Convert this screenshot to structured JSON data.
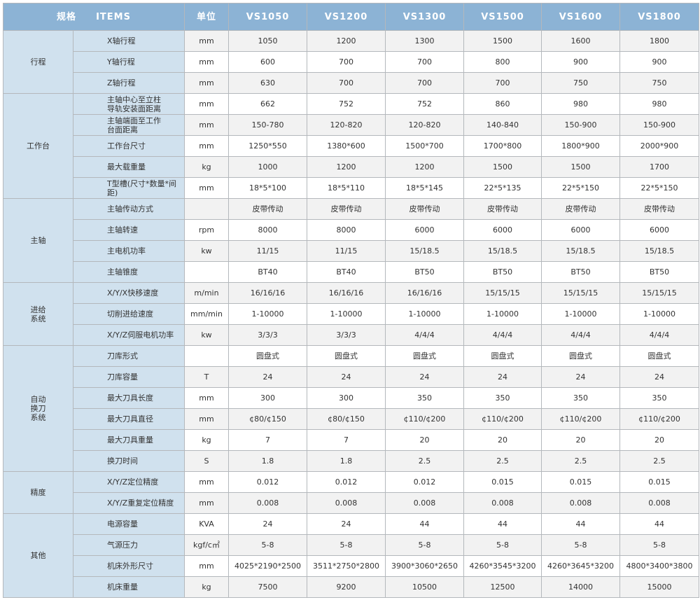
{
  "header": {
    "items_cn": "规格",
    "items_en": "ITEMS",
    "unit": "单位",
    "models": [
      "VS1050",
      "VS1200",
      "VS1300",
      "VS1500",
      "VS1600",
      "VS1800"
    ]
  },
  "groups": [
    {
      "name": "行程",
      "rows": [
        {
          "item": "X轴行程",
          "unit": "mm",
          "values": [
            "1050",
            "1200",
            "1300",
            "1500",
            "1600",
            "1800"
          ]
        },
        {
          "item": "Y轴行程",
          "unit": "mm",
          "values": [
            "600",
            "700",
            "700",
            "800",
            "900",
            "900"
          ]
        },
        {
          "item": "Z轴行程",
          "unit": "mm",
          "values": [
            "630",
            "700",
            "700",
            "700",
            "750",
            "750"
          ]
        }
      ]
    },
    {
      "name": "工作台",
      "rows": [
        {
          "item": "主轴中心至立柱\n导轨安装面距离",
          "unit": "mm",
          "values": [
            "662",
            "752",
            "752",
            "860",
            "980",
            "980"
          ]
        },
        {
          "item": "主轴端面至工作\n台面距离",
          "unit": "mm",
          "values": [
            "150-780",
            "120-820",
            "120-820",
            "140-840",
            "150-900",
            "150-900"
          ]
        },
        {
          "item": "工作台尺寸",
          "unit": "mm",
          "values": [
            "1250*550",
            "1380*600",
            "1500*700",
            "1700*800",
            "1800*900",
            "2000*900"
          ]
        },
        {
          "item": "最大载重量",
          "unit": "kg",
          "values": [
            "1000",
            "1200",
            "1200",
            "1500",
            "1500",
            "1700"
          ]
        },
        {
          "item": "T型槽(尺寸*数量*间距)",
          "unit": "mm",
          "values": [
            "18*5*100",
            "18*5*110",
            "18*5*145",
            "22*5*135",
            "22*5*150",
            "22*5*150"
          ]
        }
      ]
    },
    {
      "name": "主轴",
      "rows": [
        {
          "item": "主轴传动方式",
          "unit": "",
          "values": [
            "皮带传动",
            "皮带传动",
            "皮带传动",
            "皮带传动",
            "皮带传动",
            "皮带传动"
          ]
        },
        {
          "item": "主轴转速",
          "unit": "rpm",
          "values": [
            "8000",
            "8000",
            "6000",
            "6000",
            "6000",
            "6000"
          ]
        },
        {
          "item": "主电机功率",
          "unit": "kw",
          "values": [
            "11/15",
            "11/15",
            "15/18.5",
            "15/18.5",
            "15/18.5",
            "15/18.5"
          ]
        },
        {
          "item": "主轴锥度",
          "unit": "",
          "values": [
            "BT40",
            "BT40",
            "BT50",
            "BT50",
            "BT50",
            "BT50"
          ]
        }
      ]
    },
    {
      "name": "进给\n系统",
      "rows": [
        {
          "item": "X/Y/X快移速度",
          "unit": "m/min",
          "values": [
            "16/16/16",
            "16/16/16",
            "16/16/16",
            "15/15/15",
            "15/15/15",
            "15/15/15"
          ]
        },
        {
          "item": "切削进给速度",
          "unit": "mm/min",
          "values": [
            "1-10000",
            "1-10000",
            "1-10000",
            "1-10000",
            "1-10000",
            "1-10000"
          ]
        },
        {
          "item": "X/Y/Z伺服电机功率",
          "unit": "kw",
          "values": [
            "3/3/3",
            "3/3/3",
            "4/4/4",
            "4/4/4",
            "4/4/4",
            "4/4/4"
          ]
        }
      ]
    },
    {
      "name": "自动\n换刀\n系统",
      "rows": [
        {
          "item": "刀库形式",
          "unit": "",
          "values": [
            "圆盘式",
            "圆盘式",
            "圆盘式",
            "圆盘式",
            "圆盘式",
            "圆盘式"
          ]
        },
        {
          "item": "刀库容量",
          "unit": "T",
          "values": [
            "24",
            "24",
            "24",
            "24",
            "24",
            "24"
          ]
        },
        {
          "item": "最大刀具长度",
          "unit": "mm",
          "values": [
            "300",
            "300",
            "350",
            "350",
            "350",
            "350"
          ]
        },
        {
          "item": "最大刀具直径",
          "unit": "mm",
          "values": [
            "¢80/¢150",
            "¢80/¢150",
            "¢110/¢200",
            "¢110/¢200",
            "¢110/¢200",
            "¢110/¢200"
          ]
        },
        {
          "item": "最大刀具重量",
          "unit": "kg",
          "values": [
            "7",
            "7",
            "20",
            "20",
            "20",
            "20"
          ]
        },
        {
          "item": "换刀时间",
          "unit": "S",
          "values": [
            "1.8",
            "1.8",
            "2.5",
            "2.5",
            "2.5",
            "2.5"
          ]
        }
      ]
    },
    {
      "name": "精度",
      "rows": [
        {
          "item": "X/Y/Z定位精度",
          "unit": "mm",
          "values": [
            "0.012",
            "0.012",
            "0.012",
            "0.015",
            "0.015",
            "0.015"
          ]
        },
        {
          "item": "X/Y/Z重复定位精度",
          "unit": "mm",
          "values": [
            "0.008",
            "0.008",
            "0.008",
            "0.008",
            "0.008",
            "0.008"
          ]
        }
      ]
    },
    {
      "name": "其他",
      "rows": [
        {
          "item": "电源容量",
          "unit": "KVA",
          "values": [
            "24",
            "24",
            "44",
            "44",
            "44",
            "44"
          ]
        },
        {
          "item": "气源压力",
          "unit": "kgf/c㎡",
          "values": [
            "5-8",
            "5-8",
            "5-8",
            "5-8",
            "5-8",
            "5-8"
          ]
        },
        {
          "item": "机床外形尺寸",
          "unit": "mm",
          "values": [
            "4025*2190*2500",
            "3511*2750*2800",
            "3900*3060*2650",
            "4260*3545*3200",
            "4260*3645*3200",
            "4800*3400*3800"
          ]
        },
        {
          "item": "机床重量",
          "unit": "kg",
          "values": [
            "7500",
            "9200",
            "10500",
            "12500",
            "14000",
            "15000"
          ]
        }
      ]
    }
  ]
}
